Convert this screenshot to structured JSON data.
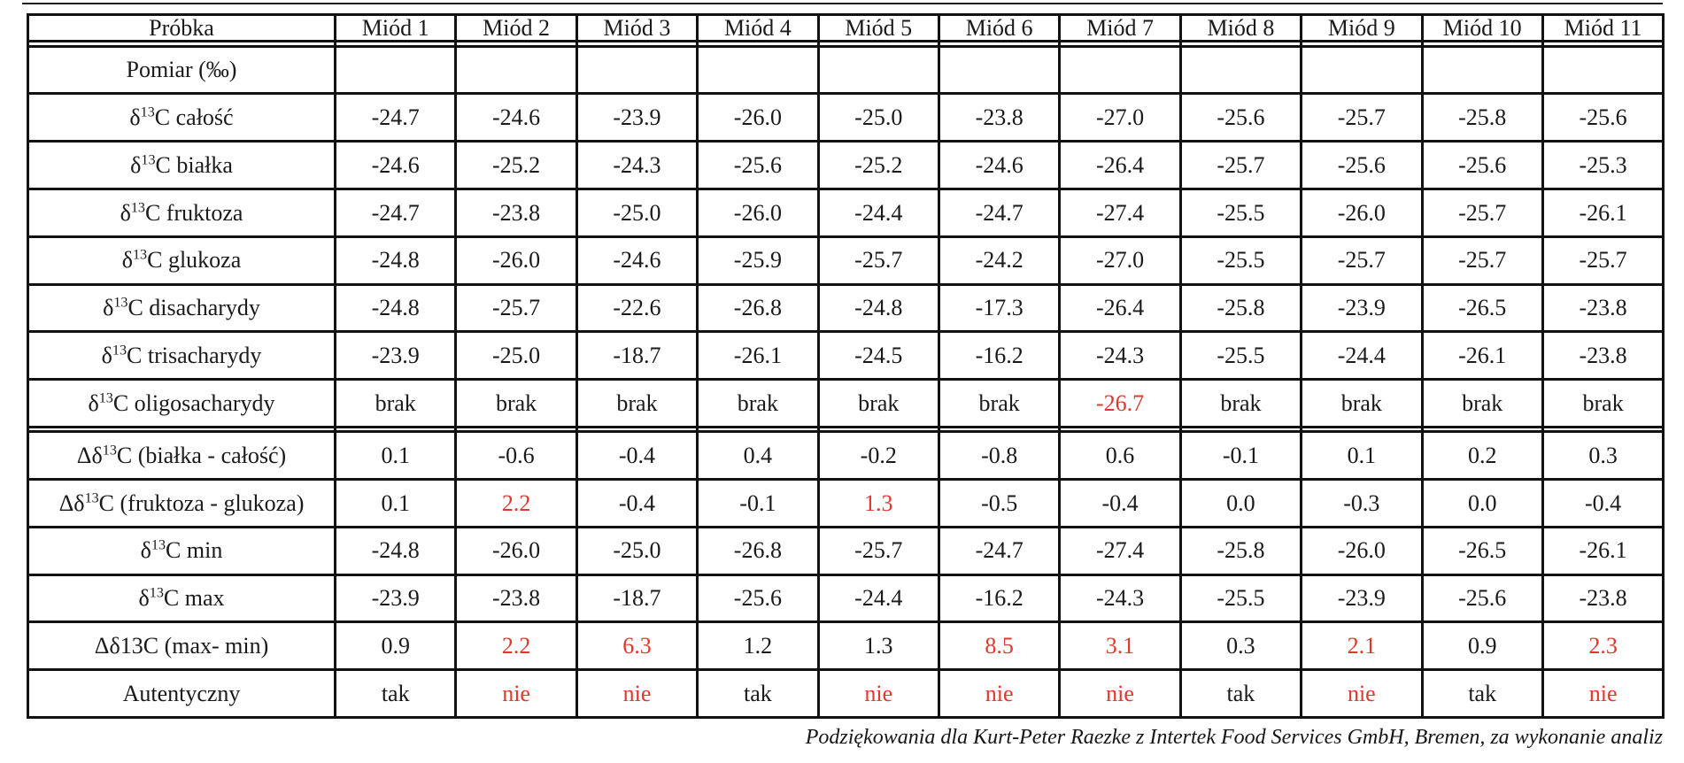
{
  "colors": {
    "text": "#1a1a1a",
    "red_highlight": "#e0382c",
    "border": "#121212",
    "background": "#ffffff"
  },
  "footer": {
    "text": "Podziękowania dla Kurt-Peter Raezke z Intertek Food Services GmbH, Bremen, za wykonanie analiz"
  },
  "table": {
    "header": [
      "Próbka",
      "Miód 1",
      "Miód 2",
      "Miód 3",
      "Miód 4",
      "Miód 5",
      "Miód 6",
      "Miód 7",
      "Miód 8",
      "Miód 9",
      "Miód 10",
      "Miód 11"
    ],
    "rows": [
      {
        "label": {
          "base1": "",
          "sup": "",
          "base2": ""
        },
        "values": [
          "",
          "",
          "",
          "",
          "",
          "",
          "",
          "",
          "",
          "",
          ""
        ],
        "red": []
      },
      {
        "label": {
          "base1": "Pomiar (‰)",
          "sup": "",
          "base2": ""
        },
        "values": [
          "",
          "",
          "",
          "",
          "",
          "",
          "",
          "",
          "",
          "",
          ""
        ],
        "red": []
      },
      {
        "label": {
          "base1": "δ",
          "sup": "13",
          "base2": "C całość"
        },
        "values": [
          "-24.7",
          "-24.6",
          "-23.9",
          "-26.0",
          "-25.0",
          "-23.8",
          "-27.0",
          "-25.6",
          "-25.7",
          "-25.8",
          "-25.6"
        ],
        "red": []
      },
      {
        "label": {
          "base1": "δ",
          "sup": "13",
          "base2": "C białka"
        },
        "values": [
          "-24.6",
          "-25.2",
          "-24.3",
          "-25.6",
          "-25.2",
          "-24.6",
          "-26.4",
          "-25.7",
          "-25.6",
          "-25.6",
          "-25.3"
        ],
        "red": []
      },
      {
        "label": {
          "base1": "δ",
          "sup": "13",
          "base2": "C fruktoza"
        },
        "values": [
          "-24.7",
          "-23.8",
          "-25.0",
          "-26.0",
          "-24.4",
          "-24.7",
          "-27.4",
          "-25.5",
          "-26.0",
          "-25.7",
          "-26.1"
        ],
        "red": []
      },
      {
        "label": {
          "base1": "δ",
          "sup": "13",
          "base2": "C glukoza"
        },
        "values": [
          "-24.8",
          "-26.0",
          "-24.6",
          "-25.9",
          "-25.7",
          "-24.2",
          "-27.0",
          "-25.5",
          "-25.7",
          "-25.7",
          "-25.7"
        ],
        "red": []
      },
      {
        "label": {
          "base1": "δ",
          "sup": "13",
          "base2": "C disacharydy"
        },
        "values": [
          "-24.8",
          "-25.7",
          "-22.6",
          "-26.8",
          "-24.8",
          "-17.3",
          "-26.4",
          "-25.8",
          "-23.9",
          "-26.5",
          "-23.8"
        ],
        "red": []
      },
      {
        "label": {
          "base1": "δ",
          "sup": "13",
          "base2": "C trisacharydy"
        },
        "values": [
          "-23.9",
          "-25.0",
          "-18.7",
          "-26.1",
          "-24.5",
          "-16.2",
          "-24.3",
          "-25.5",
          "-24.4",
          "-26.1",
          "-23.8"
        ],
        "red": []
      },
      {
        "label": {
          "base1": "δ",
          "sup": "13",
          "base2": "C oligosacharydy"
        },
        "values": [
          "brak",
          "brak",
          "brak",
          "brak",
          "brak",
          "brak",
          "-26.7",
          "brak",
          "brak",
          "brak",
          "brak"
        ],
        "red": [
          6
        ]
      },
      {
        "label": {
          "base1": "",
          "sup": "",
          "base2": ""
        },
        "values": [
          "",
          "",
          "",
          "",
          "",
          "",
          "",
          "",
          "",
          "",
          ""
        ],
        "red": []
      },
      {
        "label": {
          "base1": "Δδ",
          "sup": "13",
          "base2": "C (białka - całość)"
        },
        "values": [
          "0.1",
          "-0.6",
          "-0.4",
          "0.4",
          "-0.2",
          "-0.8",
          "0.6",
          "-0.1",
          "0.1",
          "0.2",
          "0.3"
        ],
        "red": []
      },
      {
        "label": {
          "base1": "Δδ",
          "sup": "13",
          "base2": "C (fruktoza - glukoza)"
        },
        "values": [
          "0.1",
          "2.2",
          "-0.4",
          "-0.1",
          "1.3",
          "-0.5",
          "-0.4",
          "0.0",
          "-0.3",
          "0.0",
          "-0.4"
        ],
        "red": [
          1,
          4
        ]
      },
      {
        "label": {
          "base1": "δ",
          "sup": "13",
          "base2": "C min"
        },
        "values": [
          "-24.8",
          "-26.0",
          "-25.0",
          "-26.8",
          "-25.7",
          "-24.7",
          "-27.4",
          "-25.8",
          "-26.0",
          "-26.5",
          "-26.1"
        ],
        "red": []
      },
      {
        "label": {
          "base1": "δ",
          "sup": "13",
          "base2": "C max"
        },
        "values": [
          "-23.9",
          "-23.8",
          "-18.7",
          "-25.6",
          "-24.4",
          "-16.2",
          "-24.3",
          "-25.5",
          "-23.9",
          "-25.6",
          "-23.8"
        ],
        "red": []
      },
      {
        "label": {
          "base1": "Δδ13C (max- min)",
          "sup": "",
          "base2": ""
        },
        "values": [
          "0.9",
          "2.2",
          "6.3",
          "1.2",
          "1.3",
          "8.5",
          "3.1",
          "0.3",
          "2.1",
          "0.9",
          "2.3"
        ],
        "red": [
          1,
          2,
          5,
          6,
          8,
          10
        ]
      },
      {
        "label": {
          "base1": "Autentyczny",
          "sup": "",
          "base2": ""
        },
        "values": [
          "tak",
          "nie",
          "nie",
          "tak",
          "nie",
          "nie",
          "nie",
          "tak",
          "nie",
          "tak",
          "nie"
        ],
        "red": [
          1,
          2,
          4,
          5,
          6,
          8,
          10
        ]
      }
    ]
  }
}
